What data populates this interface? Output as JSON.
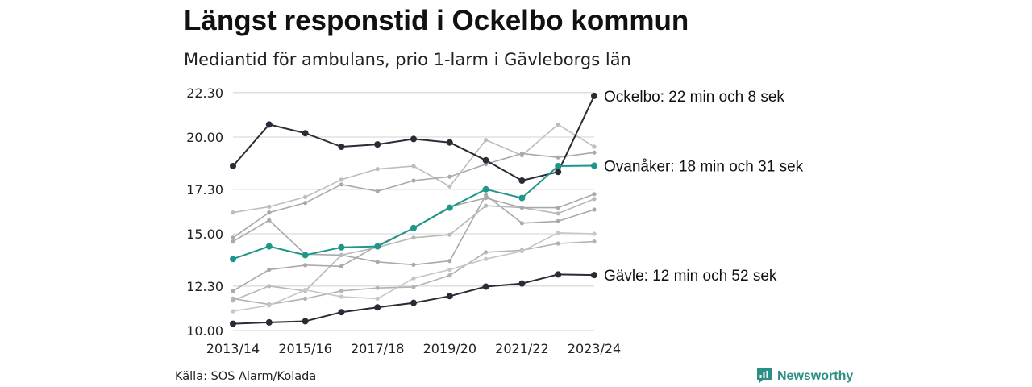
{
  "title": "Längst responstid i Ockelbo kommun",
  "subtitle": "Mediantid för ambulans, prio 1-larm i Gävleborgs län",
  "source": "Källa: SOS Alarm/Kolada",
  "brand": {
    "name": "Newsworthy",
    "icon": "newsworthy-logo-icon",
    "color": "#2c8f86"
  },
  "chart_data": {
    "type": "line",
    "x": [
      "2013/14",
      "2014/15",
      "2015/16",
      "2016/17",
      "2017/18",
      "2018/19",
      "2019/20",
      "2020/21",
      "2021/22",
      "2022/23",
      "2023/24"
    ],
    "x_tick_labels": [
      "2013/14",
      "2015/16",
      "2017/18",
      "2019/20",
      "2021/22",
      "2023/24"
    ],
    "y_tick_labels": [
      "10.00",
      "12.30",
      "15.00",
      "17.30",
      "20.00",
      "22.30"
    ],
    "ylim": [
      10.0,
      22.5
    ],
    "grid": true,
    "series": [
      {
        "name": "Ockelbo: 22 min och 8 sek",
        "color": "#2b2a36",
        "highlight": true,
        "values": [
          18.5,
          20.65,
          20.2,
          19.5,
          19.62,
          19.9,
          19.72,
          18.8,
          17.75,
          18.2,
          22.13
        ]
      },
      {
        "name": "Ovanåker: 18 min och 31 sek",
        "color": "#1e968a",
        "highlight": true,
        "values": [
          13.7,
          14.35,
          13.9,
          14.3,
          14.35,
          15.3,
          16.35,
          17.3,
          16.85,
          18.5,
          18.52
        ]
      },
      {
        "name": "Gävle: 12 min och 52 sek",
        "color": "#2b2a36",
        "highlight": true,
        "values": [
          10.35,
          10.42,
          10.48,
          10.95,
          11.2,
          11.43,
          11.78,
          12.27,
          12.43,
          12.9,
          12.87
        ]
      },
      {
        "color": "#bdbdbd",
        "values": [
          16.1,
          16.4,
          16.9,
          17.8,
          18.35,
          18.5,
          17.45,
          19.85,
          19.05,
          20.65,
          19.5
        ]
      },
      {
        "color": "#a9a9a9",
        "values": [
          14.8,
          16.1,
          16.6,
          17.55,
          17.2,
          17.75,
          17.95,
          18.6,
          19.15,
          18.95,
          19.2
        ]
      },
      {
        "color": "#a9a9a9",
        "values": [
          14.6,
          15.7,
          13.95,
          13.9,
          13.55,
          13.4,
          13.6,
          17.0,
          15.55,
          15.65,
          16.25
        ]
      },
      {
        "color": "#b8b8b8",
        "values": [
          11.55,
          12.3,
          12.05,
          13.9,
          14.3,
          14.8,
          14.95,
          16.45,
          16.35,
          16.05,
          16.8
        ]
      },
      {
        "color": "#a9a9a9",
        "values": [
          12.05,
          13.15,
          13.38,
          13.32,
          14.4,
          15.3,
          16.4,
          16.85,
          16.35,
          16.35,
          17.05
        ]
      },
      {
        "color": "#b3b3b3",
        "values": [
          11.65,
          11.35,
          11.65,
          12.05,
          12.2,
          12.25,
          12.85,
          14.05,
          14.15,
          14.5,
          14.6
        ]
      },
      {
        "color": "#c6c6c6",
        "values": [
          11.0,
          11.3,
          12.1,
          11.75,
          11.65,
          12.7,
          13.15,
          13.7,
          14.1,
          15.05,
          15.0
        ]
      }
    ]
  }
}
